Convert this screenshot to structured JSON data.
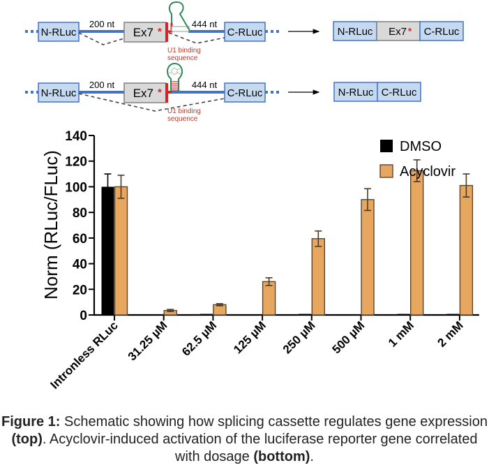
{
  "schematic": {
    "rows": [
      {
        "left_block": "N-RLuc",
        "exon_block": "Ex7",
        "right_block": "C-RLuc",
        "intron1_length": "200 nt",
        "intron2_length": "444 nt",
        "u1_label_line1": "U1 binding",
        "u1_label_line2": "sequence",
        "hairpin_state": "open",
        "product_blocks": [
          "N-RLuc",
          "Ex7",
          "C-RLuc"
        ]
      },
      {
        "left_block": "N-RLuc",
        "exon_block": "Ex7",
        "right_block": "C-RLuc",
        "intron1_length": "200 nt",
        "intron2_length": "444 nt",
        "u1_label_line1": "U1 binding",
        "u1_label_line2": "sequence",
        "hairpin_state": "ligand-bound",
        "product_blocks": [
          "N-RLuc",
          "C-RLuc"
        ]
      }
    ],
    "exon_marker": "*",
    "colors": {
      "block_fill": "#c5daf1",
      "block_stroke": "#4472c4",
      "exon_fill": "#d9d9d9",
      "exon_stroke": "#7f7f7f",
      "intron_line": "#4472c4",
      "u1_red": "#e02020",
      "u1_label": "#c0392b",
      "hairpin_green": "#2e8b57"
    }
  },
  "chart_data": {
    "type": "bar",
    "title": "",
    "xlabel": "",
    "ylabel": "Norm (RLuc/FLuc)",
    "ylim": [
      0,
      140
    ],
    "yticks": [
      0,
      20,
      40,
      60,
      80,
      100,
      120,
      140
    ],
    "grid": false,
    "legend_position": "top-right",
    "categories": [
      "Intronless RLuc",
      "31.25 µM",
      "62.5 µM",
      "125 µM",
      "250 µM",
      "500 µM",
      "1 mM",
      "2 mM"
    ],
    "series": [
      {
        "name": "DMSO",
        "color": "#000000",
        "values": [
          100,
          0.3,
          0,
          0.3,
          0,
          0.3,
          0,
          0
        ],
        "errors": [
          10,
          0,
          0,
          0,
          0,
          0,
          0,
          0
        ]
      },
      {
        "name": "Acyclovir",
        "color": "#e8a75e",
        "values": [
          100,
          3.5,
          8,
          26,
          59.5,
          90,
          112.5,
          101
        ],
        "errors": [
          9,
          0.8,
          0.8,
          3,
          6,
          8.5,
          8.5,
          9
        ]
      }
    ]
  },
  "caption": {
    "label": "Figure 1:",
    "text1": " Schematic showing how splicing cassette regulates gene expression ",
    "bold1": "(top)",
    "text2": ". Acyclovir-induced activation of the luciferase reporter gene correlated with dosage ",
    "bold2": "(bottom)",
    "text3": "."
  }
}
